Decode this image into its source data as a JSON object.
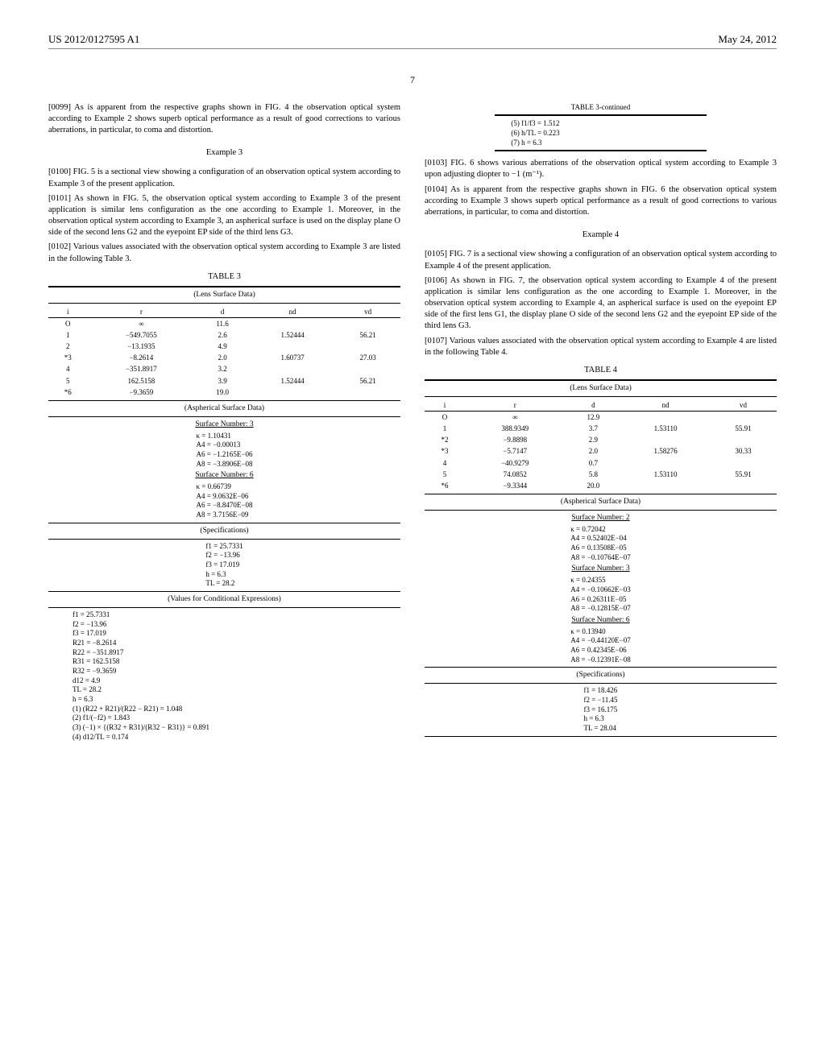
{
  "header": {
    "doc_number": "US 2012/0127595 A1",
    "date": "May 24, 2012"
  },
  "page_number": "7",
  "left_col": {
    "p0099": "[0099]   As is apparent from the respective graphs shown in FIG. 4 the observation optical system according to Example 2 shows superb optical performance as a result of good corrections to various aberrations, in particular, to coma and distortion.",
    "example3_heading": "Example 3",
    "p0100": "[0100]   FIG. 5 is a sectional view showing a configuration of an observation optical system according to Example 3 of the present application.",
    "p0101": "[0101]   As shown in FIG. 5, the observation optical system according to Example 3 of the present application is similar lens configuration as the one according to Example 1. Moreover, in the observation optical system according to Example 3, an aspherical surface is used on the display plane O side of the second lens G2 and the eyepoint EP side of the third lens G3.",
    "p0102": "[0102]   Various values associated with the observation optical system according to Example 3 are listed in the following Table 3.",
    "table3": {
      "caption": "TABLE 3",
      "lens_section": "(Lens Surface Data)",
      "headers": [
        "i",
        "r",
        "d",
        "nd",
        "vd"
      ],
      "rows": [
        [
          "O",
          "∞",
          "11.6",
          "",
          ""
        ],
        [
          "1",
          "−549.7055",
          "2.6",
          "1.52444",
          "56.21"
        ],
        [
          "2",
          "−13.1935",
          "4.9",
          "",
          ""
        ],
        [
          "*3",
          "−8.2614",
          "2.0",
          "1.60737",
          "27.03"
        ],
        [
          "4",
          "−351.8917",
          "3.2",
          "",
          ""
        ],
        [
          "5",
          "162.5158",
          "3.9",
          "1.52444",
          "56.21"
        ],
        [
          "*6",
          "−9.3659",
          "19.0",
          "",
          ""
        ]
      ],
      "asph_section": "(Aspherical Surface Data)",
      "surf3_label": "Surface Number: 3",
      "surf3_lines": [
        "κ = 1.10431",
        "A4 = −0.00013",
        "A6 = −1.2165E−06",
        "A8 = −3.8906E−08"
      ],
      "surf6_label": "Surface Number: 6",
      "surf6_lines": [
        "κ = 0.66739",
        "A4 = 9.0632E−06",
        "A6 = −8.8470E−08",
        "A8 = 3.7156E−09"
      ],
      "specs_section": "(Specifications)",
      "specs_lines": [
        "f1 = 25.7331",
        "f2 = −13.96",
        "f3 = 17.019",
        "h = 6.3",
        "TL = 28.2"
      ],
      "cond_section": "(Values for Conditional Expressions)",
      "cond_lines": [
        "f1 = 25.7331",
        "f2 = −13.96",
        "f3 = 17.019",
        "R21 = −8.2614",
        "R22 = −351.8917",
        "R31 = 162.5158",
        "R32 = −9.3659",
        "d12 = 4.9",
        "TL = 28.2",
        "h = 6.3",
        "(1) (R22 + R21)/(R22 − R21) = 1.048",
        "(2) f1/(−f2) = 1.843",
        "(3) (−1) × {(R32 + R31)/(R32 − R31)} = 0.891",
        "(4) d12/TL = 0.174"
      ]
    }
  },
  "right_col": {
    "table3_cont": {
      "caption": "TABLE 3-continued",
      "lines": [
        "(5) f1/f3 = 1.512",
        "(6) h/TL = 0.223",
        "(7) h = 6.3"
      ]
    },
    "p0103": "[0103]   FIG. 6 shows various aberrations of the observation optical system according to Example 3 upon adjusting diopter to −1 (m⁻¹).",
    "p0104": "[0104]   As is apparent from the respective graphs shown in FIG. 6 the observation optical system according to Example 3 shows superb optical performance as a result of good corrections to various aberrations, in particular, to coma and distortion.",
    "example4_heading": "Example 4",
    "p0105": "[0105]   FIG. 7 is a sectional view showing a configuration of an observation optical system according to Example 4 of the present application.",
    "p0106": "[0106]   As shown in FIG. 7, the observation optical system according to Example 4 of the present application is similar lens configuration as the one according to Example 1. Moreover, in the observation optical system according to Example 4, an aspherical surface is used on the eyepoint EP side of the first lens G1, the display plane O side of the second lens G2 and the eyepoint EP side of the third lens G3.",
    "p0107": "[0107]   Various values associated with the observation optical system according to Example 4 are listed in the following Table 4.",
    "table4": {
      "caption": "TABLE 4",
      "lens_section": "(Lens Surface Data)",
      "headers": [
        "i",
        "r",
        "d",
        "nd",
        "vd"
      ],
      "rows": [
        [
          "O",
          "∞",
          "12.9",
          "",
          ""
        ],
        [
          "1",
          "388.9349",
          "3.7",
          "1.53110",
          "55.91"
        ],
        [
          "*2",
          "−9.8898",
          "2.9",
          "",
          ""
        ],
        [
          "*3",
          "−5.7147",
          "2.0",
          "1.58276",
          "30.33"
        ],
        [
          "4",
          "−40.9279",
          "0.7",
          "",
          ""
        ],
        [
          "5",
          "74.0852",
          "5.8",
          "1.53110",
          "55.91"
        ],
        [
          "*6",
          "−9.3344",
          "20.0",
          "",
          ""
        ]
      ],
      "asph_section": "(Aspherical Surface Data)",
      "surf2_label": "Surface Number: 2",
      "surf2_lines": [
        "κ = 0.72042",
        "A4 = 0.52402E−04",
        "A6 = 0.13508E−05",
        "A8 = −0.10764E−07"
      ],
      "surf3_label": "Surface Number: 3",
      "surf3_lines": [
        "κ = 0.24355",
        "A4 = −0.10662E−03",
        "A6 = 0.26311E−05",
        "A8 = −0.12815E−07"
      ],
      "surf6_label": "Surface Number: 6",
      "surf6_lines": [
        "κ = 0.13940",
        "A4 = −0.44120E−07",
        "A6 = 0.42345E−06",
        "A8 = −0.12391E−08"
      ],
      "specs_section": "(Specifications)",
      "specs_lines": [
        "f1 = 18.426",
        "f2 = −11.45",
        "f3 = 16.175",
        "h = 6.3",
        "TL = 28.04"
      ]
    }
  }
}
